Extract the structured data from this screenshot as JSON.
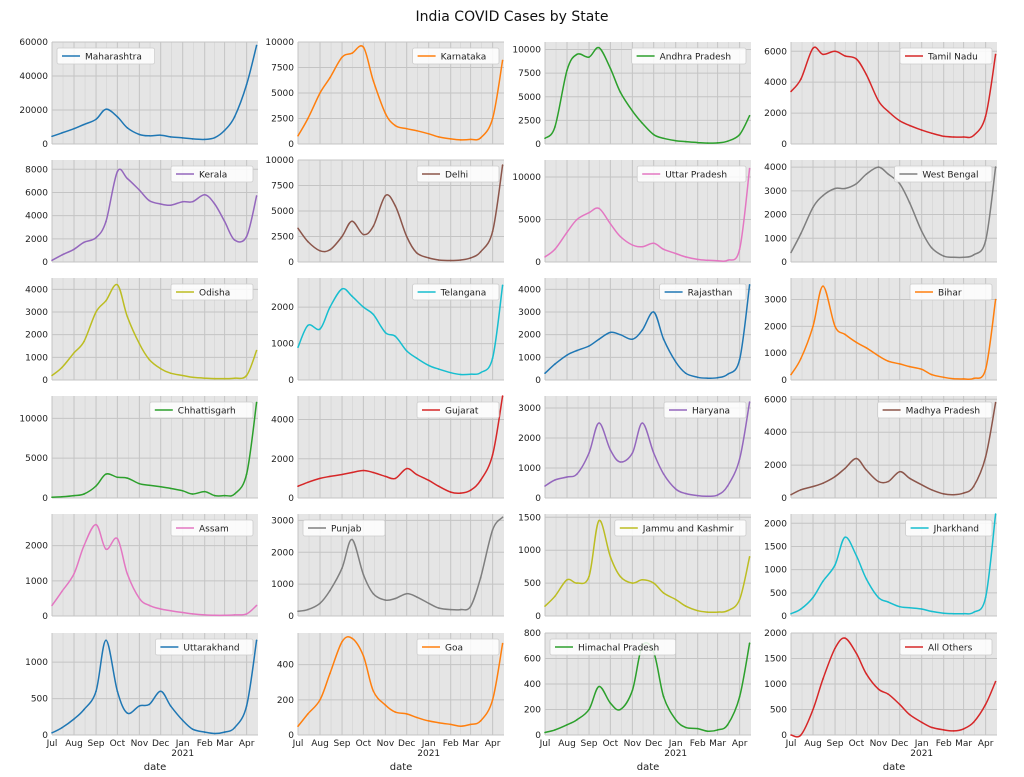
{
  "title": "India COVID Cases by State",
  "chart_data": {
    "type": "line",
    "grid": true,
    "legend_placement": "upper corner of each panel",
    "xlabel": "date",
    "x_tick_labels": [
      "Jul",
      "Aug",
      "Sep",
      "Oct",
      "Nov",
      "Dec",
      "Jan",
      "Feb",
      "Mar",
      "Apr"
    ],
    "x_year_label": "2021",
    "x": [
      "2020-07-01",
      "2020-07-15",
      "2020-08-01",
      "2020-08-15",
      "2020-09-01",
      "2020-09-15",
      "2020-10-01",
      "2020-10-15",
      "2020-11-01",
      "2020-11-15",
      "2020-12-01",
      "2020-12-15",
      "2021-01-01",
      "2021-01-15",
      "2021-02-01",
      "2021-02-15",
      "2021-03-01",
      "2021-03-15",
      "2021-04-01",
      "2021-04-15"
    ],
    "panels": [
      {
        "name": "Maharashtra",
        "color": "#1f77b4",
        "legend": "left",
        "ylim": [
          0,
          60000
        ],
        "yticks": [
          0,
          20000,
          40000,
          60000
        ],
        "values": [
          4500,
          6500,
          9000,
          11500,
          14500,
          20500,
          16000,
          9500,
          5600,
          4800,
          5200,
          4200,
          3600,
          3000,
          2700,
          3700,
          8000,
          16000,
          35000,
          58000
        ]
      },
      {
        "name": "Karnataka",
        "color": "#ff7f0e",
        "legend": "right",
        "ylim": [
          0,
          10000
        ],
        "yticks": [
          0,
          2500,
          5000,
          7500,
          10000
        ],
        "values": [
          800,
          2500,
          5000,
          6500,
          8500,
          8900,
          9500,
          6200,
          3000,
          1800,
          1500,
          1300,
          1000,
          700,
          500,
          400,
          450,
          600,
          2500,
          8200
        ]
      },
      {
        "name": "Andhra Pradesh",
        "color": "#2ca02c",
        "legend": "right",
        "ylim": [
          0,
          10800
        ],
        "yticks": [
          0,
          2500,
          5000,
          7500,
          10000
        ],
        "values": [
          600,
          1800,
          7800,
          9500,
          9200,
          10200,
          8000,
          5500,
          3500,
          2200,
          1000,
          600,
          350,
          250,
          150,
          100,
          120,
          300,
          1000,
          3000
        ]
      },
      {
        "name": "Tamil Nadu",
        "color": "#d62728",
        "legend": "right",
        "ylim": [
          0,
          6600
        ],
        "yticks": [
          0,
          2000,
          4000,
          6000
        ],
        "values": [
          3400,
          4200,
          6200,
          5800,
          6000,
          5700,
          5500,
          4500,
          2800,
          2100,
          1500,
          1200,
          900,
          700,
          500,
          450,
          450,
          550,
          1800,
          5800
        ]
      },
      {
        "name": "Kerala",
        "color": "#9467bd",
        "legend": "right",
        "ylim": [
          0,
          8800
        ],
        "yticks": [
          0,
          2000,
          4000,
          6000,
          8000
        ],
        "values": [
          150,
          600,
          1100,
          1700,
          2100,
          3500,
          7800,
          7200,
          6200,
          5300,
          5000,
          4900,
          5200,
          5200,
          5800,
          5000,
          3500,
          1900,
          2200,
          5700
        ]
      },
      {
        "name": "Delhi",
        "color": "#8c564b",
        "legend": "right",
        "ylim": [
          0,
          10000
        ],
        "yticks": [
          0,
          2500,
          5000,
          7500,
          10000
        ],
        "values": [
          3300,
          2000,
          1100,
          1200,
          2500,
          4000,
          2700,
          3500,
          6500,
          5500,
          2500,
          900,
          400,
          200,
          150,
          200,
          400,
          1000,
          3000,
          9500
        ]
      },
      {
        "name": "Uttar Pradesh",
        "color": "#e377c2",
        "legend": "right",
        "ylim": [
          0,
          12000
        ],
        "yticks": [
          0,
          5000,
          10000
        ],
        "values": [
          600,
          1500,
          3500,
          5000,
          5800,
          6300,
          4500,
          3000,
          2000,
          1800,
          2200,
          1500,
          1000,
          600,
          300,
          200,
          150,
          200,
          1500,
          11000
        ]
      },
      {
        "name": "West Bengal",
        "color": "#7f7f7f",
        "legend": "right",
        "ylim": [
          0,
          4300
        ],
        "yticks": [
          0,
          1000,
          2000,
          3000,
          4000
        ],
        "values": [
          400,
          1200,
          2300,
          2800,
          3100,
          3100,
          3300,
          3700,
          4000,
          3700,
          3300,
          2500,
          1300,
          600,
          250,
          200,
          200,
          300,
          900,
          4000
        ]
      },
      {
        "name": "Odisha",
        "color": "#bcbd22",
        "legend": "right",
        "ylim": [
          0,
          4500
        ],
        "yticks": [
          0,
          1000,
          2000,
          3000,
          4000
        ],
        "values": [
          200,
          550,
          1200,
          1700,
          3000,
          3500,
          4200,
          2800,
          1600,
          900,
          500,
          300,
          200,
          120,
          80,
          60,
          60,
          80,
          200,
          1300
        ]
      },
      {
        "name": "Telangana",
        "color": "#17becf",
        "legend": "right",
        "ylim": [
          0,
          2800
        ],
        "yticks": [
          0,
          1000,
          2000
        ],
        "values": [
          900,
          1500,
          1400,
          2000,
          2500,
          2300,
          2000,
          1800,
          1300,
          1200,
          800,
          600,
          400,
          300,
          200,
          150,
          160,
          200,
          600,
          2600
        ]
      },
      {
        "name": "Rajasthan",
        "color": "#1f77b4",
        "legend": "right",
        "ylim": [
          0,
          4500
        ],
        "yticks": [
          0,
          1000,
          2000,
          3000,
          4000
        ],
        "values": [
          300,
          700,
          1100,
          1300,
          1500,
          1800,
          2100,
          2000,
          1800,
          2200,
          3000,
          1800,
          800,
          300,
          120,
          80,
          100,
          250,
          900,
          4200
        ]
      },
      {
        "name": "Bihar",
        "color": "#ff7f0e",
        "legend": "right",
        "ylim": [
          0,
          3800
        ],
        "yticks": [
          0,
          1000,
          2000,
          3000
        ],
        "values": [
          200,
          800,
          2000,
          3500,
          2000,
          1700,
          1400,
          1200,
          900,
          700,
          600,
          500,
          400,
          200,
          100,
          50,
          40,
          60,
          400,
          3000
        ]
      },
      {
        "name": "Chhattisgarh",
        "color": "#2ca02c",
        "legend": "right",
        "ylim": [
          0,
          12800
        ],
        "yticks": [
          0,
          5000,
          10000
        ],
        "values": [
          100,
          150,
          300,
          500,
          1500,
          3000,
          2600,
          2500,
          1800,
          1600,
          1400,
          1200,
          900,
          500,
          800,
          300,
          300,
          500,
          3000,
          12000
        ]
      },
      {
        "name": "Gujarat",
        "color": "#d62728",
        "legend": "right",
        "ylim": [
          0,
          5200
        ],
        "yticks": [
          0,
          2000,
          4000
        ],
        "values": [
          600,
          800,
          1000,
          1100,
          1200,
          1300,
          1400,
          1300,
          1100,
          1000,
          1500,
          1200,
          900,
          600,
          300,
          250,
          400,
          900,
          2200,
          5200
        ]
      },
      {
        "name": "Haryana",
        "color": "#9467bd",
        "legend": "right",
        "ylim": [
          0,
          3400
        ],
        "yticks": [
          0,
          1000,
          2000,
          3000
        ],
        "values": [
          400,
          600,
          700,
          800,
          1500,
          2500,
          1600,
          1200,
          1500,
          2500,
          1500,
          800,
          300,
          150,
          80,
          60,
          100,
          400,
          1300,
          3200
        ]
      },
      {
        "name": "Madhya Pradesh",
        "color": "#8c564b",
        "legend": "right",
        "ylim": [
          0,
          6200
        ],
        "yticks": [
          0,
          2000,
          4000,
          6000
        ],
        "values": [
          200,
          500,
          700,
          900,
          1300,
          1800,
          2400,
          1700,
          1000,
          1000,
          1600,
          1200,
          800,
          500,
          250,
          200,
          300,
          700,
          2500,
          5800
        ]
      },
      {
        "name": "Assam",
        "color": "#e377c2",
        "legend": "right",
        "ylim": [
          0,
          2900
        ],
        "yticks": [
          0,
          1000,
          2000
        ],
        "values": [
          300,
          700,
          1200,
          2000,
          2600,
          1900,
          2200,
          1200,
          500,
          300,
          200,
          150,
          100,
          60,
          30,
          20,
          20,
          30,
          60,
          300
        ]
      },
      {
        "name": "Punjab",
        "color": "#7f7f7f",
        "legend": "left",
        "ylim": [
          0,
          3200
        ],
        "yticks": [
          0,
          1000,
          2000,
          3000
        ],
        "values": [
          150,
          200,
          400,
          800,
          1500,
          2400,
          1300,
          700,
          500,
          550,
          700,
          600,
          400,
          250,
          200,
          200,
          300,
          1200,
          2700,
          3100
        ]
      },
      {
        "name": "Jammu and Kashmir",
        "color": "#bcbd22",
        "legend": "right",
        "ylim": [
          0,
          1550
        ],
        "yticks": [
          0,
          500,
          1000,
          1500
        ],
        "values": [
          150,
          300,
          550,
          500,
          600,
          1450,
          900,
          600,
          500,
          550,
          500,
          350,
          250,
          150,
          80,
          60,
          60,
          80,
          250,
          900
        ]
      },
      {
        "name": "Jharkhand",
        "color": "#17becf",
        "legend": "right",
        "ylim": [
          0,
          2200
        ],
        "yticks": [
          0,
          500,
          1000,
          1500,
          2000
        ],
        "values": [
          50,
          150,
          400,
          750,
          1100,
          1700,
          1300,
          800,
          400,
          300,
          200,
          180,
          150,
          100,
          60,
          50,
          50,
          80,
          400,
          2200
        ]
      },
      {
        "name": "Uttarakhand",
        "color": "#1f77b4",
        "legend": "right",
        "ylim": [
          0,
          1400
        ],
        "yticks": [
          0,
          500,
          1000
        ],
        "values": [
          30,
          100,
          220,
          350,
          600,
          1300,
          600,
          300,
          400,
          420,
          600,
          400,
          200,
          80,
          40,
          20,
          40,
          100,
          400,
          1300
        ]
      },
      {
        "name": "Goa",
        "color": "#ff7f0e",
        "legend": "right",
        "ylim": [
          0,
          580
        ],
        "yticks": [
          0,
          200,
          400
        ],
        "values": [
          50,
          120,
          200,
          350,
          530,
          550,
          450,
          250,
          170,
          130,
          120,
          100,
          80,
          70,
          60,
          50,
          60,
          80,
          200,
          520
        ]
      },
      {
        "name": "Himachal Pradesh",
        "color": "#2ca02c",
        "legend": "left",
        "ylim": [
          0,
          800
        ],
        "yticks": [
          0,
          200,
          400,
          600,
          800
        ],
        "values": [
          20,
          40,
          80,
          120,
          200,
          380,
          250,
          200,
          350,
          700,
          650,
          300,
          120,
          60,
          50,
          30,
          40,
          80,
          300,
          720
        ]
      },
      {
        "name": "All Others",
        "color": "#d62728",
        "legend": "right",
        "ylim": [
          0,
          2000
        ],
        "yticks": [
          0,
          500,
          1000,
          1500,
          2000
        ],
        "values": [
          0,
          0,
          500,
          1100,
          1700,
          1900,
          1600,
          1200,
          900,
          800,
          600,
          400,
          250,
          150,
          100,
          80,
          120,
          250,
          600,
          1050
        ]
      }
    ]
  }
}
